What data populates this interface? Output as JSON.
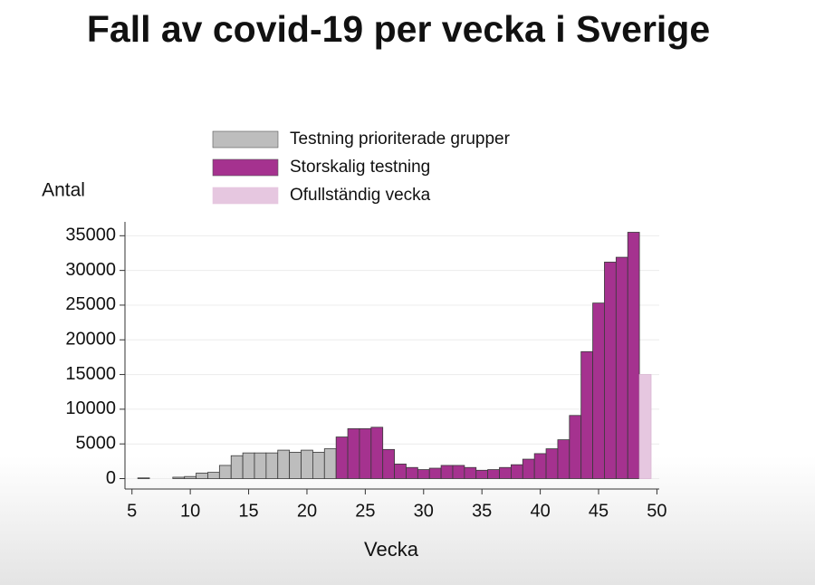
{
  "chart_data": {
    "type": "bar",
    "title": "Fall av covid-19 per vecka i Sverige",
    "x_label": "Vecka",
    "y_label": "Antal",
    "xlim": [
      4.4,
      50.2
    ],
    "xticks": [
      5,
      10,
      15,
      20,
      25,
      30,
      35,
      40,
      45,
      50
    ],
    "ylim": [
      -1500,
      37000
    ],
    "yticks": [
      0,
      5000,
      10000,
      15000,
      20000,
      25000,
      30000,
      35000
    ],
    "grid": true,
    "series": [
      {
        "name": "Testning prioriterade grupper",
        "color": "#bdbdbd",
        "x": [
          6,
          9,
          10,
          11,
          12,
          13,
          14,
          15,
          16,
          17,
          18,
          19,
          20,
          21,
          22
        ],
        "values": [
          100,
          200,
          300,
          800,
          900,
          1900,
          3300,
          3700,
          3700,
          3700,
          4100,
          3800,
          4100,
          3800,
          4300
        ]
      },
      {
        "name": "Storskalig testning",
        "color": "#a5328f",
        "x": [
          23,
          24,
          25,
          26,
          27,
          28,
          29,
          30,
          31,
          32,
          33,
          34,
          35,
          36,
          37,
          38,
          39,
          40,
          41,
          42,
          43,
          44,
          45,
          46,
          47,
          48
        ],
        "values": [
          6000,
          7200,
          7200,
          7400,
          4200,
          2100,
          1600,
          1300,
          1500,
          1900,
          1900,
          1600,
          1200,
          1300,
          1600,
          2000,
          2800,
          3600,
          4300,
          5600,
          9100,
          18300,
          25300,
          31200,
          31900,
          35500
        ]
      },
      {
        "name": "Ofullständig vecka",
        "color": "#e6c7e0",
        "x": [
          49
        ],
        "values": [
          15000
        ]
      }
    ]
  }
}
